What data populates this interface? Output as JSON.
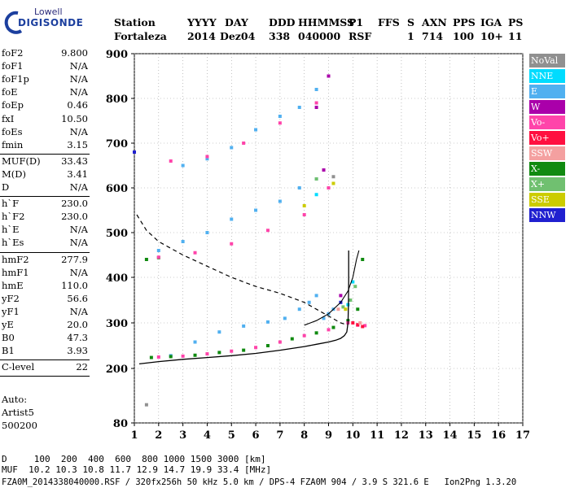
{
  "logo": {
    "line1": "Lowell",
    "line2": "DIGISONDE"
  },
  "header": {
    "labels": [
      "Station",
      "YYYY",
      "DAY",
      "DDD",
      "HHMMSS",
      "P1",
      "FFS",
      "S",
      "AXN",
      "PPS",
      "IGA",
      "PS"
    ],
    "values": [
      "Fortaleza",
      "2014",
      "Dez04",
      "338",
      "040000",
      "RSF",
      "",
      "1",
      "714",
      "100",
      "10+",
      "11"
    ]
  },
  "params_group1": [
    {
      "name": "foF2",
      "value": "9.800"
    },
    {
      "name": "foF1",
      "value": "N/A"
    },
    {
      "name": "foF1p",
      "value": "N/A"
    },
    {
      "name": "foE",
      "value": "N/A"
    },
    {
      "name": "foEp",
      "value": "0.46"
    },
    {
      "name": "fxI",
      "value": "10.50"
    },
    {
      "name": "foEs",
      "value": "N/A"
    },
    {
      "name": "fmin",
      "value": "3.15"
    }
  ],
  "params_group2": [
    {
      "name": "MUF(D)",
      "value": "33.43"
    },
    {
      "name": "M(D)",
      "value": "3.41"
    },
    {
      "name": "D",
      "value": "N/A"
    }
  ],
  "params_group3": [
    {
      "name": "h`F",
      "value": "230.0"
    },
    {
      "name": "h`F2",
      "value": "230.0"
    },
    {
      "name": "h`E",
      "value": "N/A"
    },
    {
      "name": "h`Es",
      "value": "N/A"
    }
  ],
  "params_group4": [
    {
      "name": "hmF2",
      "value": "277.9"
    },
    {
      "name": "hmF1",
      "value": "N/A"
    },
    {
      "name": "hmE",
      "value": "110.0"
    },
    {
      "name": "yF2",
      "value": "56.6"
    },
    {
      "name": "yF1",
      "value": "N/A"
    },
    {
      "name": "yE",
      "value": "20.0"
    },
    {
      "name": "B0",
      "value": "47.3"
    },
    {
      "name": "B1",
      "value": "3.93"
    }
  ],
  "params_group5": [
    {
      "name": "C-level",
      "value": "22"
    }
  ],
  "auto": {
    "line1": "Auto:",
    "line2": "Artist5",
    "line3": "500200"
  },
  "legend": [
    {
      "label": "NoVal",
      "color": "#909090"
    },
    {
      "label": "NNE",
      "color": "#00dcff"
    },
    {
      "label": "E",
      "color": "#50b0f0"
    },
    {
      "label": "W",
      "color": "#aa00aa"
    },
    {
      "label": "Vo-",
      "color": "#ff44aa"
    },
    {
      "label": "Vo+",
      "color": "#ff1040"
    },
    {
      "label": "SSW",
      "color": "#f4a0a0"
    },
    {
      "label": "X-",
      "color": "#108a10"
    },
    {
      "label": "X+",
      "color": "#70c070"
    },
    {
      "label": "SSE",
      "color": "#cccc00"
    },
    {
      "label": "NNW",
      "color": "#2020d0"
    }
  ],
  "footer": {
    "line1": "D     100  200  400  600  800 1000 1500 3000 [km]",
    "line2": "MUF  10.2 10.3 10.8 11.7 12.9 14.7 19.9 33.4 [MHz]",
    "line3": "FZA0M_2014338040000.RSF / 320fx256h 50 kHz 5.0 km / DPS-4 FZA0M 904 / 3.9 S 321.6 E   Ion2Png 1.3.20"
  },
  "chart_data": {
    "type": "scatter",
    "xlim": [
      1,
      17
    ],
    "ylim": [
      80,
      900
    ],
    "xticks": [
      1,
      2,
      3,
      4,
      5,
      6,
      7,
      8,
      9,
      10,
      11,
      12,
      13,
      14,
      15,
      16,
      17
    ],
    "yticks": [
      80,
      200,
      300,
      400,
      500,
      600,
      700,
      800,
      900
    ],
    "grid": "dotted",
    "legend_position": "right",
    "series": [
      {
        "name": "E",
        "color": "#50b0f0",
        "points": [
          [
            2.5,
            228
          ],
          [
            3.5,
            258
          ],
          [
            4.5,
            280
          ],
          [
            5.5,
            293
          ],
          [
            6.5,
            302
          ],
          [
            7.2,
            310
          ],
          [
            7.8,
            330
          ],
          [
            8.2,
            345
          ],
          [
            8.5,
            360
          ],
          [
            8.8,
            310
          ],
          [
            9.0,
            320
          ],
          [
            9.2,
            330
          ],
          [
            3.0,
            650
          ],
          [
            4.0,
            665
          ],
          [
            5.0,
            690
          ],
          [
            6.0,
            730
          ],
          [
            7.0,
            760
          ],
          [
            7.8,
            780
          ],
          [
            8.5,
            820
          ],
          [
            2.0,
            460
          ],
          [
            3.0,
            480
          ],
          [
            4.0,
            500
          ],
          [
            5.0,
            530
          ],
          [
            6.0,
            550
          ],
          [
            7.0,
            570
          ],
          [
            7.8,
            600
          ],
          [
            8.5,
            620
          ]
        ]
      },
      {
        "name": "X-",
        "color": "#108a10",
        "points": [
          [
            1.7,
            224
          ],
          [
            2.5,
            226
          ],
          [
            3.5,
            229
          ],
          [
            4.5,
            235
          ],
          [
            5.5,
            240
          ],
          [
            6.5,
            250
          ],
          [
            7.5,
            265
          ],
          [
            8.5,
            278
          ],
          [
            9.2,
            290
          ],
          [
            9.8,
            305
          ],
          [
            10.2,
            330
          ],
          [
            10.4,
            440
          ],
          [
            1.5,
            440
          ],
          [
            2.0,
            444
          ]
        ]
      },
      {
        "name": "Vo-",
        "color": "#ff44aa",
        "points": [
          [
            2.0,
            225
          ],
          [
            3.0,
            227
          ],
          [
            4.0,
            232
          ],
          [
            5.0,
            238
          ],
          [
            6.0,
            246
          ],
          [
            7.0,
            258
          ],
          [
            8.0,
            272
          ],
          [
            9.0,
            285
          ],
          [
            9.8,
            300
          ],
          [
            10.2,
            295
          ],
          [
            10.5,
            294
          ],
          [
            2.0,
            445
          ],
          [
            3.5,
            455
          ],
          [
            5.0,
            475
          ],
          [
            6.5,
            505
          ],
          [
            8.0,
            540
          ],
          [
            9.0,
            600
          ],
          [
            2.5,
            660
          ],
          [
            4.0,
            670
          ],
          [
            5.5,
            700
          ],
          [
            7.0,
            745
          ],
          [
            8.5,
            790
          ]
        ]
      },
      {
        "name": "Vo+",
        "color": "#ff1040",
        "points": [
          [
            10.0,
            300
          ],
          [
            10.2,
            296
          ],
          [
            10.4,
            292
          ]
        ]
      },
      {
        "name": "W",
        "color": "#aa00aa",
        "points": [
          [
            9.5,
            360
          ],
          [
            8.5,
            780
          ],
          [
            9.0,
            850
          ],
          [
            8.8,
            640
          ]
        ]
      },
      {
        "name": "X+",
        "color": "#70c070",
        "points": [
          [
            9.6,
            335
          ],
          [
            9.9,
            350
          ],
          [
            10.1,
            380
          ],
          [
            8.5,
            620
          ]
        ]
      },
      {
        "name": "SSE",
        "color": "#cccc00",
        "points": [
          [
            9.7,
            330
          ],
          [
            9.2,
            610
          ],
          [
            8.0,
            560
          ]
        ]
      },
      {
        "name": "NNE",
        "color": "#00dcff",
        "points": [
          [
            10.0,
            390
          ],
          [
            9.8,
            340
          ],
          [
            8.5,
            585
          ]
        ]
      },
      {
        "name": "SSW",
        "color": "#f4a0a0",
        "points": [
          [
            10.3,
            300
          ],
          [
            9.4,
            330
          ]
        ]
      },
      {
        "name": "NNW",
        "color": "#2020d0",
        "points": [
          [
            1.0,
            680
          ],
          [
            9.5,
            345
          ]
        ]
      },
      {
        "name": "NoVal",
        "color": "#909090",
        "points": [
          [
            1.5,
            120
          ],
          [
            9.2,
            625
          ]
        ]
      }
    ],
    "profile_curve": [
      [
        1.2,
        210
      ],
      [
        2.0,
        215
      ],
      [
        3.0,
        220
      ],
      [
        4.0,
        224
      ],
      [
        5.0,
        228
      ],
      [
        6.0,
        233
      ],
      [
        7.0,
        240
      ],
      [
        7.5,
        244
      ],
      [
        8.0,
        248
      ],
      [
        8.5,
        253
      ],
      [
        9.0,
        258
      ],
      [
        9.3,
        262
      ],
      [
        9.5,
        266
      ],
      [
        9.65,
        272
      ],
      [
        9.75,
        280
      ],
      [
        9.8,
        300
      ],
      [
        9.82,
        340
      ],
      [
        9.83,
        390
      ],
      [
        9.83,
        460
      ]
    ],
    "dashed_curve": [
      [
        1.1,
        540
      ],
      [
        1.5,
        505
      ],
      [
        2.0,
        480
      ],
      [
        3.0,
        450
      ],
      [
        4.0,
        425
      ],
      [
        5.0,
        400
      ],
      [
        6.0,
        380
      ],
      [
        7.0,
        365
      ],
      [
        8.0,
        345
      ],
      [
        8.5,
        330
      ],
      [
        9.0,
        315
      ],
      [
        9.5,
        300
      ],
      [
        9.8,
        295
      ]
    ],
    "xo_curve": [
      [
        8.0,
        295
      ],
      [
        8.5,
        305
      ],
      [
        9.0,
        320
      ],
      [
        9.5,
        345
      ],
      [
        9.8,
        370
      ],
      [
        10.0,
        400
      ],
      [
        10.15,
        440
      ],
      [
        10.25,
        460
      ]
    ]
  }
}
